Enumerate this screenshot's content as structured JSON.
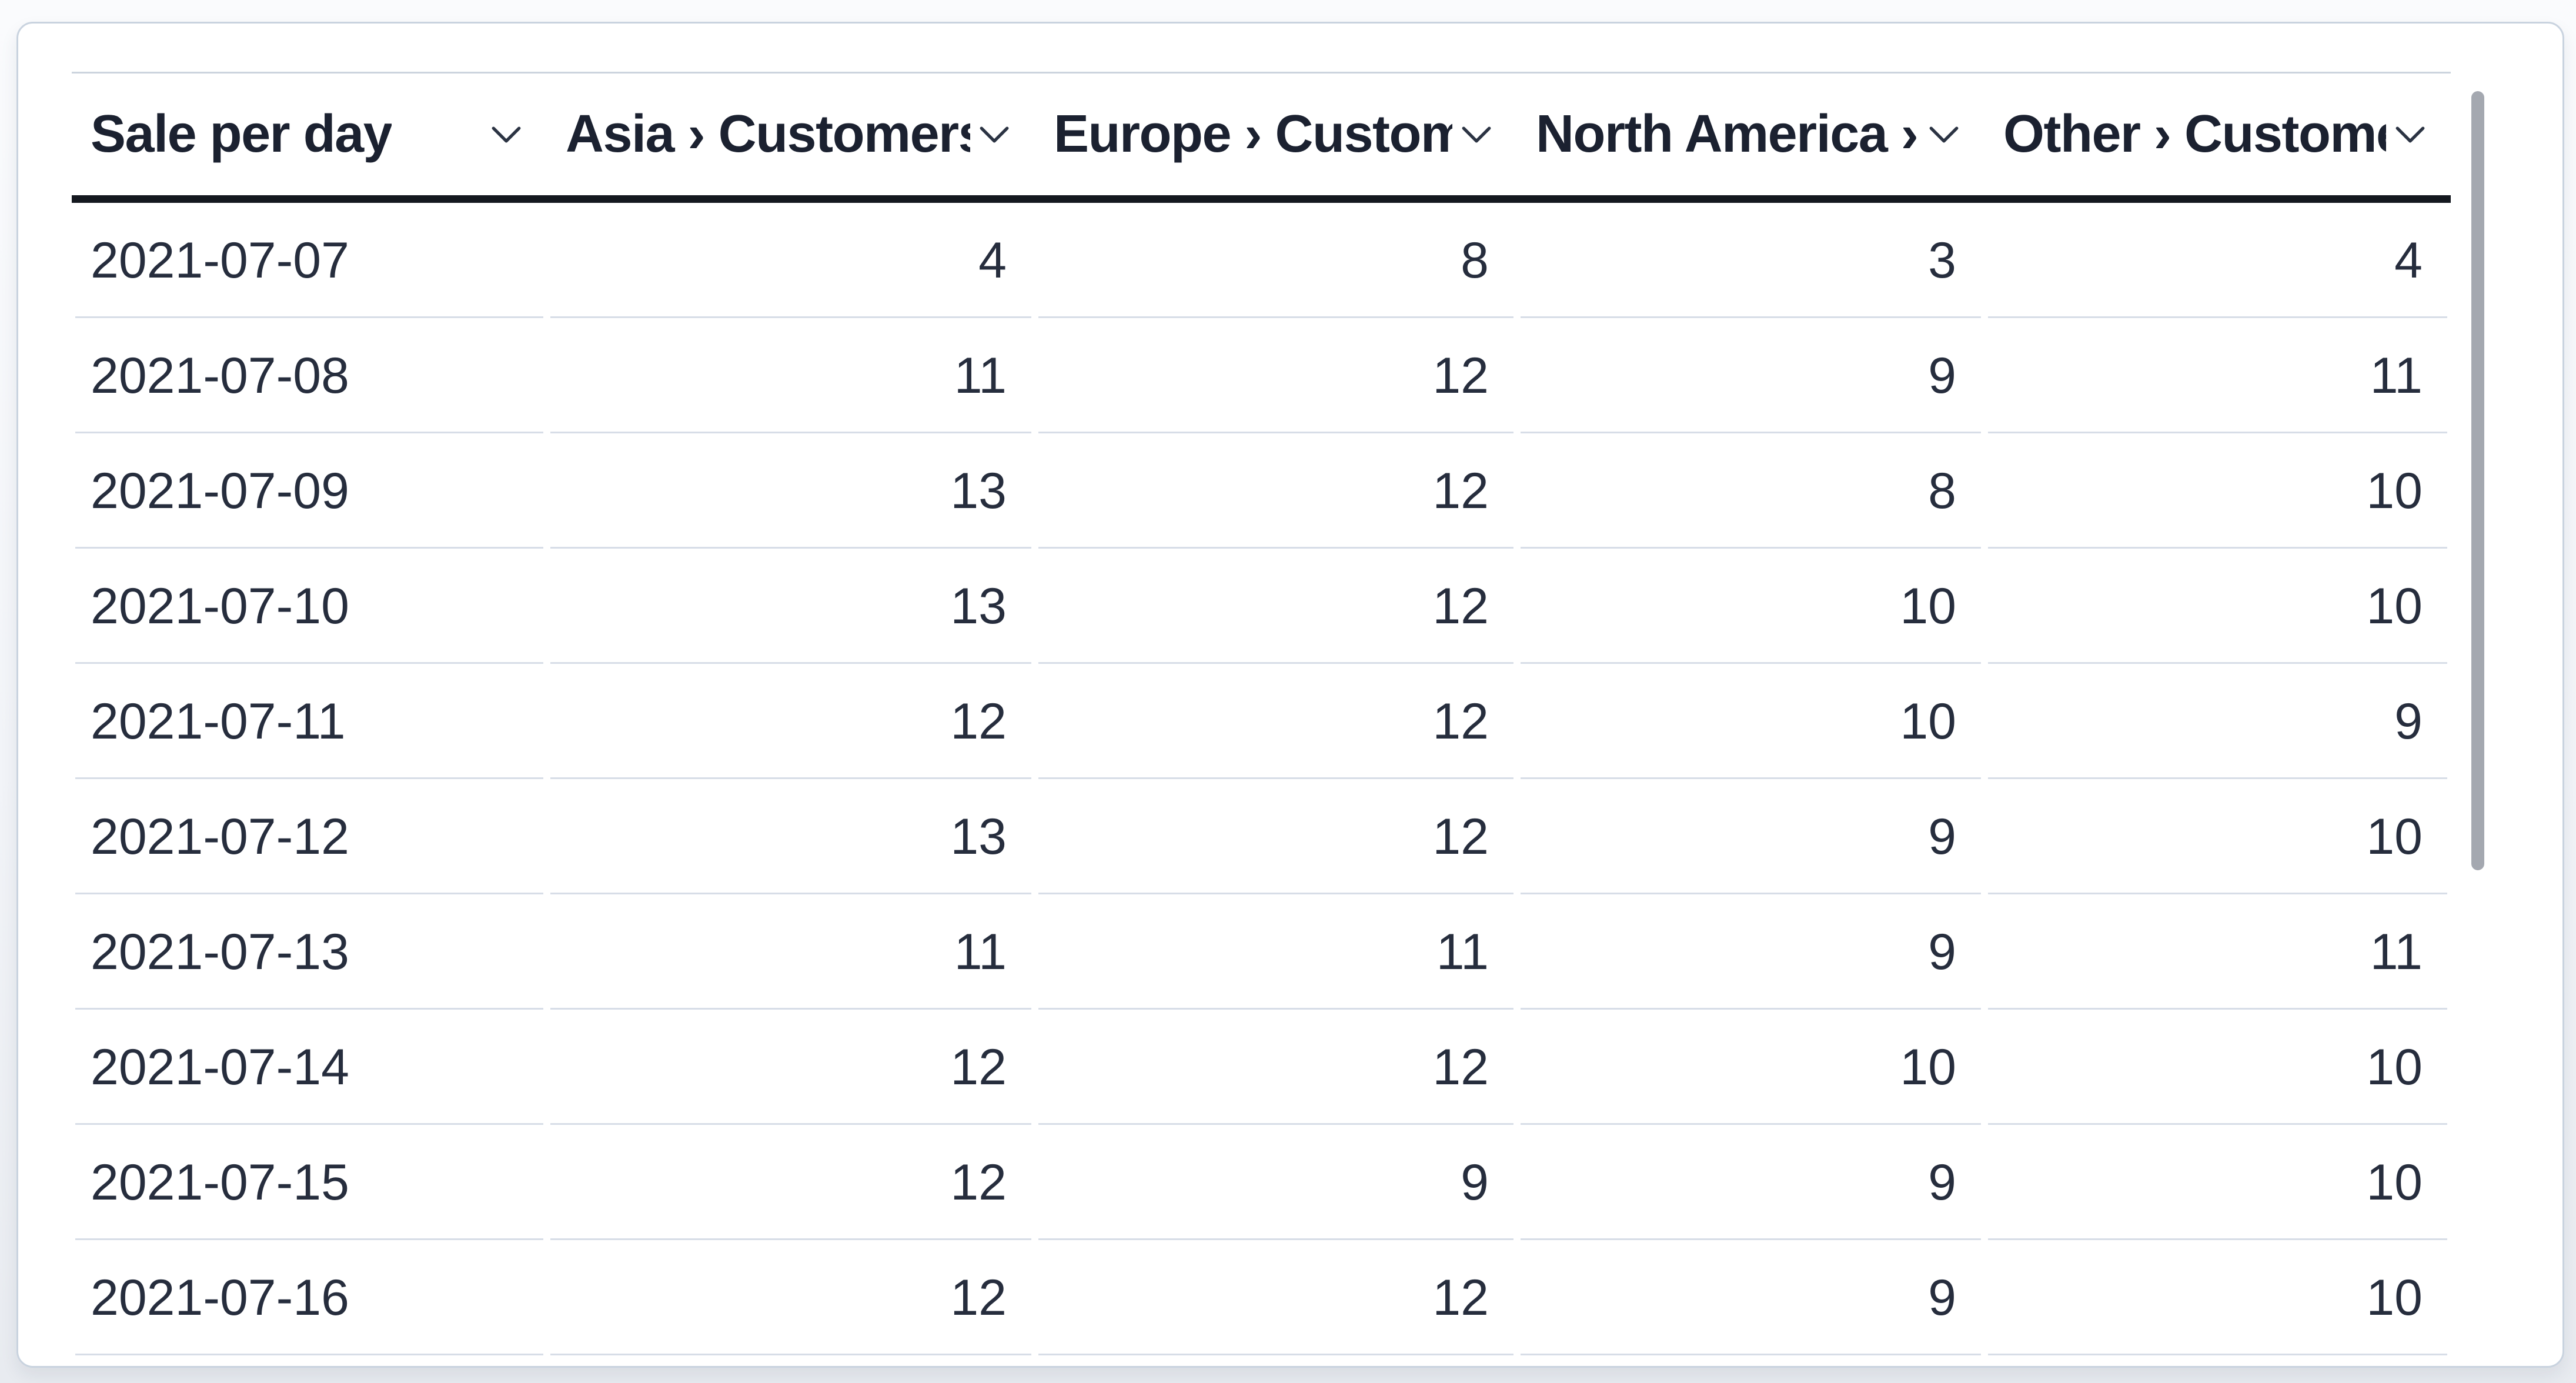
{
  "widget": {
    "kind": "table-card"
  },
  "table": {
    "columns": [
      {
        "id": "sale-per-day",
        "label": "Sale per day",
        "align": "left"
      },
      {
        "id": "asia",
        "label": "Asia › Customers",
        "align": "right"
      },
      {
        "id": "europe",
        "label": "Europe › Customers",
        "align": "right"
      },
      {
        "id": "north-america",
        "label": "North America › Customers",
        "align": "right"
      },
      {
        "id": "other",
        "label": "Other › Customers",
        "align": "right"
      }
    ],
    "rows": [
      [
        "2021-07-07",
        "4",
        "8",
        "3",
        "4"
      ],
      [
        "2021-07-08",
        "11",
        "12",
        "9",
        "11"
      ],
      [
        "2021-07-09",
        "13",
        "12",
        "8",
        "10"
      ],
      [
        "2021-07-10",
        "13",
        "12",
        "10",
        "10"
      ],
      [
        "2021-07-11",
        "12",
        "12",
        "10",
        "9"
      ],
      [
        "2021-07-12",
        "13",
        "12",
        "9",
        "10"
      ],
      [
        "2021-07-13",
        "11",
        "11",
        "9",
        "11"
      ],
      [
        "2021-07-14",
        "12",
        "12",
        "10",
        "10"
      ],
      [
        "2021-07-15",
        "12",
        "9",
        "9",
        "10"
      ],
      [
        "2021-07-16",
        "12",
        "12",
        "9",
        "10"
      ]
    ]
  },
  "icons": {
    "column_menu": "chevron-down"
  },
  "scrollbar": {
    "orientation": "vertical"
  },
  "colors": {
    "text": "#262d3d",
    "header_text": "#1b2130",
    "header_rule": "#14181f",
    "row_rule": "#d7dde7",
    "table_top_rule": "#ccd4de",
    "card_border": "#c9d3df",
    "card_bg": "#ffffff",
    "page_bg_top": "#fafbfd",
    "page_bg_bottom": "#e8ebf0",
    "scrollbar_thumb": "#a4a8b0",
    "chevron": "#2b3343"
  }
}
